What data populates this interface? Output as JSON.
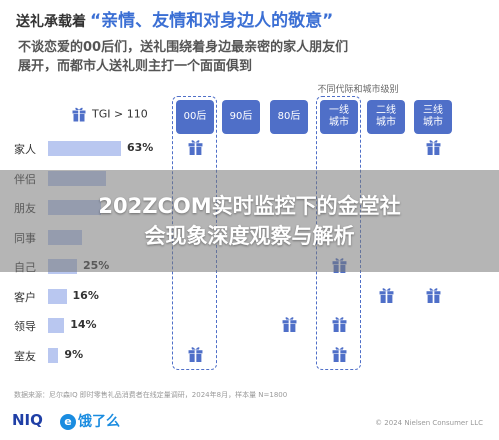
{
  "title": {
    "prefix": "送礼承载着",
    "quote": "“亲情、友情和对身边人的敬意”"
  },
  "subtitle": {
    "line1": "不谈恋爱的00后们，送礼围绕着身边最亲密的家人朋友们",
    "line2": "展开，而都市人送礼则主打一个面面俱到"
  },
  "column_group_label": "不同代际和城市级别",
  "tgi_legend": "TGI > 110",
  "columns": [
    {
      "label": "00后",
      "color": "#4f6fc8",
      "dashed": true
    },
    {
      "label": "90后",
      "color": "#4f6fc8",
      "dashed": false
    },
    {
      "label": "80后",
      "color": "#4f6fc8",
      "dashed": false
    },
    {
      "label": "一线\n城市",
      "color": "#4f6fc8",
      "dashed": true
    },
    {
      "label": "二线\n城市",
      "color": "#4f6fc8",
      "dashed": false
    },
    {
      "label": "三线\n城市",
      "color": "#4f6fc8",
      "dashed": false
    }
  ],
  "chart_data": {
    "type": "bar",
    "orientation": "horizontal",
    "categories": [
      "家人",
      "伴侣",
      "朋友",
      "同事",
      "自己",
      "客户",
      "领导",
      "室友"
    ],
    "values": [
      63,
      50,
      46,
      29,
      25,
      16,
      14,
      9
    ],
    "value_labels": [
      "63%",
      "",
      "",
      "",
      "25%",
      "16%",
      "14%",
      "9%"
    ],
    "xlim": [
      0,
      100
    ],
    "bar_color": "#b9c7f0",
    "tgi_matrix": [
      [
        true,
        false,
        false,
        false,
        false,
        true
      ],
      [
        false,
        false,
        false,
        false,
        false,
        false
      ],
      [
        false,
        false,
        false,
        false,
        false,
        false
      ],
      [
        false,
        false,
        false,
        false,
        false,
        false
      ],
      [
        false,
        false,
        false,
        true,
        false,
        false
      ],
      [
        false,
        false,
        false,
        false,
        true,
        true
      ],
      [
        false,
        false,
        true,
        true,
        false,
        false
      ],
      [
        true,
        false,
        false,
        true,
        false,
        false
      ]
    ]
  },
  "banner": {
    "line1": "202ZCOM实时监控下的金堂社",
    "line2": "会现象深度观察与解析"
  },
  "footer": {
    "source": "数据来源：尼尔森IQ 即时零售礼品消费者在线定量调研，2024年8月，样本量 N=1800",
    "copyright": "© 2024 Nielsen Consumer LLC",
    "logo_niq": "NIQ",
    "logo_ele": "饿了么",
    "logo_ele_mark": "e"
  },
  "colors": {
    "accent": "#3b6fd4",
    "header_bg": "#4f6fc8",
    "gift": "#4f6fc8"
  },
  "icons": {
    "gift": "gift-icon"
  }
}
